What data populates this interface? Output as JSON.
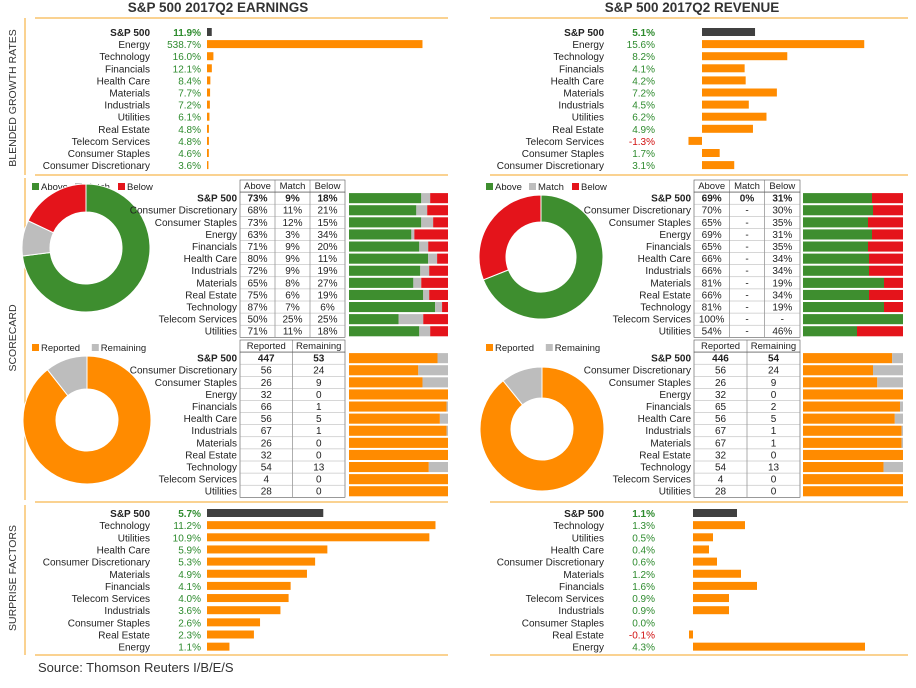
{
  "headers": {
    "earnings": "S&P 500 2017Q2 EARNINGS",
    "revenue": "S&P 500 2017Q2 REVENUE"
  },
  "side_labels": {
    "growth": "BLENDED GROWTH RATES",
    "scorecard": "SCORECARD",
    "surprise": "SURPRISE FACTORS"
  },
  "source": "Source: Thomson Reuters I/B/E/S",
  "colors": {
    "orange": "#ff8b00",
    "dark": "#404040",
    "green": "#3e8e2f",
    "gray": "#bdbdbd",
    "red": "#e4141b",
    "positive_text": "#2e8b2e",
    "negative_text": "#d11010",
    "rule": "#f5a623"
  },
  "chart_data": [
    {
      "id": "earnings_growth",
      "type": "bar",
      "categories": [
        "S&P 500",
        "Energy",
        "Technology",
        "Financials",
        "Health Care",
        "Materials",
        "Industrials",
        "Utilities",
        "Real Estate",
        "Telecom Services",
        "Consumer Staples",
        "Consumer Discretionary"
      ],
      "values": [
        11.9,
        538.7,
        16.0,
        12.1,
        8.4,
        7.7,
        7.2,
        6.1,
        4.8,
        4.8,
        4.6,
        3.6
      ],
      "labels": [
        "11.9%",
        "538.7%",
        "16.0%",
        "12.1%",
        "8.4%",
        "7.7%",
        "7.2%",
        "6.1%",
        "4.8%",
        "4.8%",
        "4.6%",
        "3.6%"
      ]
    },
    {
      "id": "revenue_growth",
      "type": "bar",
      "categories": [
        "S&P 500",
        "Energy",
        "Technology",
        "Financials",
        "Health Care",
        "Materials",
        "Industrials",
        "Utilities",
        "Real Estate",
        "Telecom Services",
        "Consumer Staples",
        "Consumer Discretionary"
      ],
      "values": [
        5.1,
        15.6,
        8.2,
        4.1,
        4.2,
        7.2,
        4.5,
        6.2,
        4.9,
        -1.3,
        1.7,
        3.1
      ],
      "labels": [
        "5.1%",
        "15.6%",
        "8.2%",
        "4.1%",
        "4.2%",
        "7.2%",
        "4.5%",
        "6.2%",
        "4.9%",
        "-1.3%",
        "1.7%",
        "3.1%"
      ]
    },
    {
      "id": "earnings_scorecard",
      "type": "table",
      "legend": [
        "Above",
        "Match",
        "Below"
      ],
      "columns": [
        "Above",
        "Match",
        "Below"
      ],
      "rows": [
        {
          "name": "S&P 500",
          "cells": [
            "73%",
            "9%",
            "18%"
          ],
          "values": [
            73,
            9,
            18
          ]
        },
        {
          "name": "Consumer Discretionary",
          "cells": [
            "68%",
            "11%",
            "21%"
          ],
          "values": [
            68,
            11,
            21
          ]
        },
        {
          "name": "Consumer Staples",
          "cells": [
            "73%",
            "12%",
            "15%"
          ],
          "values": [
            73,
            12,
            15
          ]
        },
        {
          "name": "Energy",
          "cells": [
            "63%",
            "3%",
            "34%"
          ],
          "values": [
            63,
            3,
            34
          ]
        },
        {
          "name": "Financials",
          "cells": [
            "71%",
            "9%",
            "20%"
          ],
          "values": [
            71,
            9,
            20
          ]
        },
        {
          "name": "Health Care",
          "cells": [
            "80%",
            "9%",
            "11%"
          ],
          "values": [
            80,
            9,
            11
          ]
        },
        {
          "name": "Industrials",
          "cells": [
            "72%",
            "9%",
            "19%"
          ],
          "values": [
            72,
            9,
            19
          ]
        },
        {
          "name": "Materials",
          "cells": [
            "65%",
            "8%",
            "27%"
          ],
          "values": [
            65,
            8,
            27
          ]
        },
        {
          "name": "Real Estate",
          "cells": [
            "75%",
            "6%",
            "19%"
          ],
          "values": [
            75,
            6,
            19
          ]
        },
        {
          "name": "Technology",
          "cells": [
            "87%",
            "7%",
            "6%"
          ],
          "values": [
            87,
            7,
            6
          ]
        },
        {
          "name": "Telecom Services",
          "cells": [
            "50%",
            "25%",
            "25%"
          ],
          "values": [
            50,
            25,
            25
          ]
        },
        {
          "name": "Utilities",
          "cells": [
            "71%",
            "11%",
            "18%"
          ],
          "values": [
            71,
            11,
            18
          ]
        }
      ]
    },
    {
      "id": "revenue_scorecard",
      "type": "table",
      "legend": [
        "Above",
        "Match",
        "Below"
      ],
      "columns": [
        "Above",
        "Match",
        "Below"
      ],
      "rows": [
        {
          "name": "S&P 500",
          "cells": [
            "69%",
            "0%",
            "31%"
          ],
          "values": [
            69,
            0,
            31
          ]
        },
        {
          "name": "Consumer Discretionary",
          "cells": [
            "70%",
            "-",
            "30%"
          ],
          "values": [
            70,
            0,
            30
          ]
        },
        {
          "name": "Consumer Staples",
          "cells": [
            "65%",
            "-",
            "35%"
          ],
          "values": [
            65,
            0,
            35
          ]
        },
        {
          "name": "Energy",
          "cells": [
            "69%",
            "-",
            "31%"
          ],
          "values": [
            69,
            0,
            31
          ]
        },
        {
          "name": "Financials",
          "cells": [
            "65%",
            "-",
            "35%"
          ],
          "values": [
            65,
            0,
            35
          ]
        },
        {
          "name": "Health Care",
          "cells": [
            "66%",
            "-",
            "34%"
          ],
          "values": [
            66,
            0,
            34
          ]
        },
        {
          "name": "Industrials",
          "cells": [
            "66%",
            "-",
            "34%"
          ],
          "values": [
            66,
            0,
            34
          ]
        },
        {
          "name": "Materials",
          "cells": [
            "81%",
            "-",
            "19%"
          ],
          "values": [
            81,
            0,
            19
          ]
        },
        {
          "name": "Real Estate",
          "cells": [
            "66%",
            "-",
            "34%"
          ],
          "values": [
            66,
            0,
            34
          ]
        },
        {
          "name": "Technology",
          "cells": [
            "81%",
            "-",
            "19%"
          ],
          "values": [
            81,
            0,
            19
          ]
        },
        {
          "name": "Telecom Services",
          "cells": [
            "100%",
            "-",
            "-"
          ],
          "values": [
            100,
            0,
            0
          ]
        },
        {
          "name": "Utilities",
          "cells": [
            "54%",
            "-",
            "46%"
          ],
          "values": [
            54,
            0,
            46
          ]
        }
      ]
    },
    {
      "id": "earnings_reported",
      "type": "table",
      "legend": [
        "Reported",
        "Remaining"
      ],
      "columns": [
        "Reported",
        "Remaining"
      ],
      "rows": [
        {
          "name": "S&P 500",
          "cells": [
            "447",
            "53"
          ],
          "values": [
            447,
            53
          ]
        },
        {
          "name": "Consumer Discretionary",
          "cells": [
            "56",
            "24"
          ],
          "values": [
            56,
            24
          ]
        },
        {
          "name": "Consumer Staples",
          "cells": [
            "26",
            "9"
          ],
          "values": [
            26,
            9
          ]
        },
        {
          "name": "Energy",
          "cells": [
            "32",
            "0"
          ],
          "values": [
            32,
            0
          ]
        },
        {
          "name": "Financials",
          "cells": [
            "66",
            "1"
          ],
          "values": [
            66,
            1
          ]
        },
        {
          "name": "Health Care",
          "cells": [
            "56",
            "5"
          ],
          "values": [
            56,
            5
          ]
        },
        {
          "name": "Industrials",
          "cells": [
            "67",
            "1"
          ],
          "values": [
            67,
            1
          ]
        },
        {
          "name": "Materials",
          "cells": [
            "26",
            "0"
          ],
          "values": [
            26,
            0
          ]
        },
        {
          "name": "Real Estate",
          "cells": [
            "32",
            "0"
          ],
          "values": [
            32,
            0
          ]
        },
        {
          "name": "Technology",
          "cells": [
            "54",
            "13"
          ],
          "values": [
            54,
            13
          ]
        },
        {
          "name": "Telecom Services",
          "cells": [
            "4",
            "0"
          ],
          "values": [
            4,
            0
          ]
        },
        {
          "name": "Utilities",
          "cells": [
            "28",
            "0"
          ],
          "values": [
            28,
            0
          ]
        }
      ]
    },
    {
      "id": "revenue_reported",
      "type": "table",
      "legend": [
        "Reported",
        "Remaining"
      ],
      "columns": [
        "Reported",
        "Remaining"
      ],
      "rows": [
        {
          "name": "S&P 500",
          "cells": [
            "446",
            "54"
          ],
          "values": [
            446,
            54
          ]
        },
        {
          "name": "Consumer Discretionary",
          "cells": [
            "56",
            "24"
          ],
          "values": [
            56,
            24
          ]
        },
        {
          "name": "Consumer Staples",
          "cells": [
            "26",
            "9"
          ],
          "values": [
            26,
            9
          ]
        },
        {
          "name": "Energy",
          "cells": [
            "32",
            "0"
          ],
          "values": [
            32,
            0
          ]
        },
        {
          "name": "Financials",
          "cells": [
            "65",
            "2"
          ],
          "values": [
            65,
            2
          ]
        },
        {
          "name": "Health Care",
          "cells": [
            "56",
            "5"
          ],
          "values": [
            56,
            5
          ]
        },
        {
          "name": "Industrials",
          "cells": [
            "67",
            "1"
          ],
          "values": [
            67,
            1
          ]
        },
        {
          "name": "Materials",
          "cells": [
            "67",
            "1"
          ],
          "values": [
            67,
            1
          ]
        },
        {
          "name": "Real Estate",
          "cells": [
            "32",
            "0"
          ],
          "values": [
            32,
            0
          ]
        },
        {
          "name": "Technology",
          "cells": [
            "54",
            "13"
          ],
          "values": [
            54,
            13
          ]
        },
        {
          "name": "Telecom Services",
          "cells": [
            "4",
            "0"
          ],
          "values": [
            4,
            0
          ]
        },
        {
          "name": "Utilities",
          "cells": [
            "28",
            "0"
          ],
          "values": [
            28,
            0
          ]
        }
      ]
    },
    {
      "id": "earnings_surprise",
      "type": "bar",
      "categories": [
        "S&P 500",
        "Technology",
        "Utilities",
        "Health Care",
        "Consumer Discretionary",
        "Materials",
        "Financials",
        "Telecom Services",
        "Industrials",
        "Consumer Staples",
        "Real Estate",
        "Energy"
      ],
      "values": [
        5.7,
        11.2,
        10.9,
        5.9,
        5.3,
        4.9,
        4.1,
        4.0,
        3.6,
        2.6,
        2.3,
        1.1
      ],
      "labels": [
        "5.7%",
        "11.2%",
        "10.9%",
        "5.9%",
        "5.3%",
        "4.9%",
        "4.1%",
        "4.0%",
        "3.6%",
        "2.6%",
        "2.3%",
        "1.1%"
      ]
    },
    {
      "id": "revenue_surprise",
      "type": "bar",
      "categories": [
        "S&P 500",
        "Technology",
        "Utilities",
        "Health Care",
        "Consumer Discretionary",
        "Materials",
        "Financials",
        "Telecom Services",
        "Industrials",
        "Consumer Staples",
        "Real Estate",
        "Energy"
      ],
      "values": [
        1.1,
        1.3,
        0.5,
        0.4,
        0.6,
        1.2,
        1.6,
        0.9,
        0.9,
        0.0,
        -0.1,
        4.3
      ],
      "labels": [
        "1.1%",
        "1.3%",
        "0.5%",
        "0.4%",
        "0.6%",
        "1.2%",
        "1.6%",
        "0.9%",
        "0.9%",
        "0.0%",
        "-0.1%",
        "4.3%"
      ]
    }
  ]
}
